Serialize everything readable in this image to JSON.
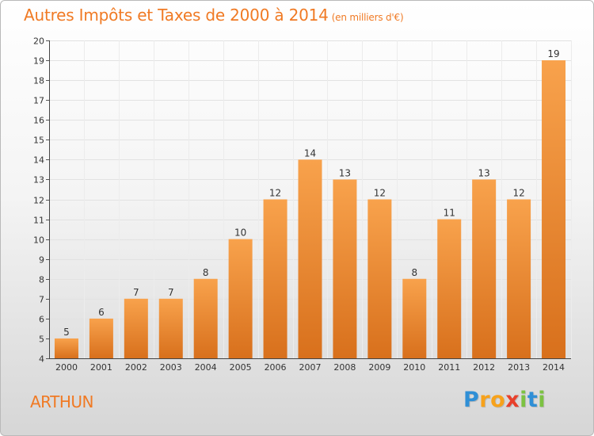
{
  "title": {
    "main": "Autres Impôts et Taxes de 2000 à 2014",
    "unit": "(en milliers d'€)"
  },
  "place": "ARTHUN",
  "logo": {
    "letters": [
      "P",
      "r",
      "o",
      "x",
      "i",
      "t",
      "i"
    ],
    "colors": [
      "#2f8fd6",
      "#f7a21b",
      "#f7a21b",
      "#e8402b",
      "#7cc242",
      "#2f8fd6",
      "#7cc242"
    ]
  },
  "colors": {
    "accent": "#f07a24",
    "bar_top": "#f8a24c",
    "bar_bottom": "#d8701c"
  },
  "chart_data": {
    "type": "bar",
    "categories": [
      "2000",
      "2001",
      "2002",
      "2003",
      "2004",
      "2005",
      "2006",
      "2007",
      "2008",
      "2009",
      "2010",
      "2011",
      "2012",
      "2013",
      "2014"
    ],
    "values": [
      5,
      6,
      7,
      7,
      8,
      10,
      12,
      14,
      13,
      12,
      8,
      11,
      13,
      12,
      19
    ],
    "ylim": [
      4,
      20
    ],
    "yticks": [
      4,
      5,
      6,
      7,
      8,
      9,
      10,
      11,
      12,
      13,
      14,
      15,
      16,
      17,
      18,
      19,
      20
    ],
    "grid": true,
    "data_labels": true
  }
}
